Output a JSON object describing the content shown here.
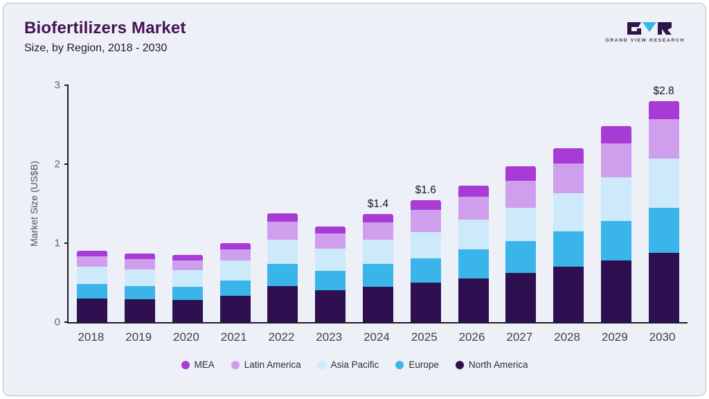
{
  "header": {
    "title": "Biofertilizers Market",
    "subtitle": "Size, by Region, 2018 - 2030",
    "logo_text": "GRAND VIEW RESEARCH"
  },
  "chart_data": {
    "type": "bar",
    "stacked": true,
    "title": "Biofertilizers Market Size, by Region, 2018 - 2030",
    "xlabel": "",
    "ylabel": "Market Size (US$B)",
    "ylim": [
      0,
      3
    ],
    "yticks": [
      0,
      1,
      2,
      3
    ],
    "grid": false,
    "legend_position": "bottom",
    "categories": [
      "2018",
      "2019",
      "2020",
      "2021",
      "2022",
      "2023",
      "2024",
      "2025",
      "2026",
      "2027",
      "2028",
      "2029",
      "2030"
    ],
    "series": [
      {
        "name": "North America",
        "color": "#2e0f4f",
        "values": [
          0.3,
          0.29,
          0.28,
          0.33,
          0.46,
          0.4,
          0.45,
          0.5,
          0.55,
          0.62,
          0.7,
          0.78,
          0.88
        ]
      },
      {
        "name": "Europe",
        "color": "#3ab5ea",
        "values": [
          0.18,
          0.17,
          0.17,
          0.2,
          0.28,
          0.25,
          0.29,
          0.31,
          0.37,
          0.41,
          0.45,
          0.5,
          0.57
        ]
      },
      {
        "name": "Asia Pacific",
        "color": "#cdeafb",
        "values": [
          0.22,
          0.21,
          0.21,
          0.25,
          0.3,
          0.28,
          0.3,
          0.33,
          0.38,
          0.42,
          0.48,
          0.55,
          0.62
        ]
      },
      {
        "name": "Latin America",
        "color": "#cf9fed",
        "values": [
          0.13,
          0.13,
          0.12,
          0.14,
          0.23,
          0.19,
          0.22,
          0.28,
          0.29,
          0.34,
          0.38,
          0.43,
          0.5
        ]
      },
      {
        "name": "MEA",
        "color": "#a83bd5",
        "values": [
          0.07,
          0.07,
          0.07,
          0.08,
          0.11,
          0.09,
          0.11,
          0.12,
          0.14,
          0.18,
          0.19,
          0.22,
          0.23
        ]
      }
    ],
    "annotations": {
      "2024": "$1.4",
      "2025": "$1.6",
      "2030": "$2.8"
    },
    "legend_order": [
      "MEA",
      "Latin America",
      "Asia Pacific",
      "Europe",
      "North America"
    ],
    "colors": {
      "background": "#edf0f7",
      "border": "#b8bdc9",
      "title": "#431254",
      "axis": "#1c1c2a",
      "logo_teal": "#35b6ea",
      "logo_dark": "#2e1548"
    }
  }
}
